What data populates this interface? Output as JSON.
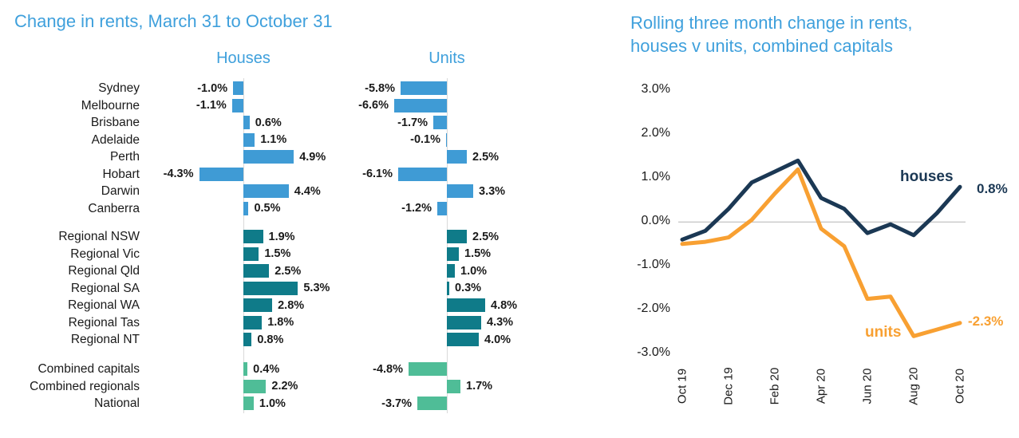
{
  "page": {
    "background": "#ffffff"
  },
  "colors": {
    "title_blue": "#3fa0dc",
    "capitals_blue": "#3f9bd5",
    "regionals_teal": "#0f7b89",
    "combined_green": "#4fbd97",
    "houses_navy": "#1b3854",
    "units_orange": "#f8a032",
    "zero_gridline_gray": "#c9c9c9",
    "axis_gray": "#d9d9d9"
  },
  "chart_data": [
    {
      "type": "bar",
      "orientation": "horizontal",
      "title": "Change in rents, March 31 to October 31",
      "series_headers": [
        "Houses",
        "Units"
      ],
      "value_unit": "%",
      "groups": [
        {
          "name": "capital-cities",
          "color": "#3f9bd5",
          "rows": [
            {
              "label": "Sydney",
              "houses": -1.0,
              "houses_label": "-1.0%",
              "units": -5.8,
              "units_label": "-5.8%"
            },
            {
              "label": "Melbourne",
              "houses": -1.1,
              "houses_label": "-1.1%",
              "units": -6.6,
              "units_label": "-6.6%"
            },
            {
              "label": "Brisbane",
              "houses": 0.6,
              "houses_label": "0.6%",
              "units": -1.7,
              "units_label": "-1.7%"
            },
            {
              "label": "Adelaide",
              "houses": 1.1,
              "houses_label": "1.1%",
              "units": -0.1,
              "units_label": "-0.1%"
            },
            {
              "label": "Perth",
              "houses": 4.9,
              "houses_label": "4.9%",
              "units": 2.5,
              "units_label": "2.5%"
            },
            {
              "label": "Hobart",
              "houses": -4.3,
              "houses_label": "-4.3%",
              "units": -6.1,
              "units_label": "-6.1%"
            },
            {
              "label": "Darwin",
              "houses": 4.4,
              "houses_label": "4.4%",
              "units": 3.3,
              "units_label": "3.3%"
            },
            {
              "label": "Canberra",
              "houses": 0.5,
              "houses_label": "0.5%",
              "units": -1.2,
              "units_label": "-1.2%"
            }
          ]
        },
        {
          "name": "regionals",
          "color": "#0f7b89",
          "rows": [
            {
              "label": "Regional NSW",
              "houses": 1.9,
              "houses_label": "1.9%",
              "units": 2.5,
              "units_label": "2.5%"
            },
            {
              "label": "Regional Vic",
              "houses": 1.5,
              "houses_label": "1.5%",
              "units": 1.5,
              "units_label": "1.5%"
            },
            {
              "label": "Regional Qld",
              "houses": 2.5,
              "houses_label": "2.5%",
              "units": 1.0,
              "units_label": "1.0%"
            },
            {
              "label": "Regional SA",
              "houses": 5.3,
              "houses_label": "5.3%",
              "units": 0.3,
              "units_label": "0.3%"
            },
            {
              "label": "Regional WA",
              "houses": 2.8,
              "houses_label": "2.8%",
              "units": 4.8,
              "units_label": "4.8%"
            },
            {
              "label": "Regional Tas",
              "houses": 1.8,
              "houses_label": "1.8%",
              "units": 4.3,
              "units_label": "4.3%"
            },
            {
              "label": "Regional NT",
              "houses": 0.8,
              "houses_label": "0.8%",
              "units": 4.0,
              "units_label": "4.0%"
            }
          ]
        },
        {
          "name": "combined",
          "color": "#4fbd97",
          "rows": [
            {
              "label": "Combined capitals",
              "houses": 0.4,
              "houses_label": "0.4%",
              "units": -4.8,
              "units_label": "-4.8%"
            },
            {
              "label": "Combined regionals",
              "houses": 2.2,
              "houses_label": "2.2%",
              "units": 1.7,
              "units_label": "1.7%"
            },
            {
              "label": "National",
              "houses": 1.0,
              "houses_label": "1.0%",
              "units": -3.7,
              "units_label": "-3.7%"
            }
          ]
        }
      ]
    },
    {
      "type": "line",
      "title_lines": [
        "Rolling three month change in rents,",
        "houses v units, combined capitals"
      ],
      "x_months": [
        "Oct 19",
        "Nov 19",
        "Dec 19",
        "Jan 20",
        "Feb 20",
        "Mar 20",
        "Apr 20",
        "May 20",
        "Jun 20",
        "Jul 20",
        "Aug 20",
        "Sep 20",
        "Oct 20"
      ],
      "x_tick_labels": [
        "Oct 19",
        "Dec 19",
        "Feb 20",
        "Apr 20",
        "Jun 20",
        "Aug 20",
        "Oct 20"
      ],
      "y_tick_labels": [
        "3.0%",
        "2.0%",
        "1.0%",
        "0.0%",
        "-1.0%",
        "-2.0%",
        "-3.0%"
      ],
      "ylim": [
        -3.0,
        3.0
      ],
      "grid": "zero-line-only",
      "legend": "inline-series-labels",
      "series": [
        {
          "name": "houses",
          "color": "#1b3854",
          "end_label": "0.8%",
          "values": [
            -0.4,
            -0.2,
            0.3,
            0.9,
            1.15,
            1.4,
            0.55,
            0.3,
            -0.25,
            -0.05,
            -0.3,
            0.2,
            0.8
          ]
        },
        {
          "name": "units",
          "color": "#f8a032",
          "end_label": "-2.3%",
          "values": [
            -0.5,
            -0.45,
            -0.35,
            0.05,
            0.65,
            1.2,
            -0.15,
            -0.55,
            -1.75,
            -1.7,
            -2.6,
            -2.45,
            -2.3
          ]
        }
      ]
    }
  ]
}
